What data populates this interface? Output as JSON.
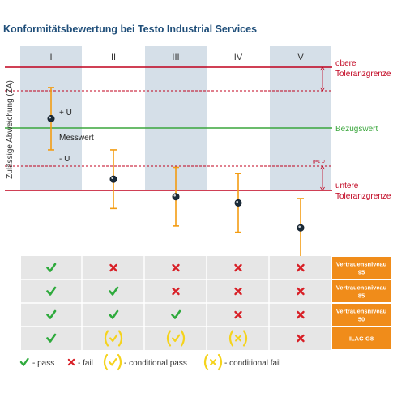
{
  "title": "Konformitätsbewertung bei Testo Industrial Services",
  "y_axis_label": "Zulässige Abweichung (ZA)",
  "columns": [
    "I",
    "II",
    "III",
    "IV",
    "V"
  ],
  "limits": {
    "upper": "obere Toleranzgrenze",
    "reference": "Bezugswert",
    "lower": "untere Toleranzgrenze",
    "guard_band": "g=1 U"
  },
  "annotations": {
    "plus_u": "+ U",
    "minus_u": "- U",
    "measured": "Messwert"
  },
  "measurements": [
    {
      "column": "I",
      "value": 0.15,
      "U": 0.5
    },
    {
      "column": "II",
      "value": -0.82,
      "U": 0.47
    },
    {
      "column": "III",
      "value": -1.1,
      "U": 0.47
    },
    {
      "column": "IV",
      "value": -1.2,
      "U": 0.47
    },
    {
      "column": "V",
      "value": -1.6,
      "U": 0.47
    }
  ],
  "legend_rows": [
    {
      "label_line1": "Vertrauensniveau",
      "label_line2": "95",
      "status": [
        "pass",
        "fail",
        "fail",
        "fail",
        "fail"
      ]
    },
    {
      "label_line1": "Vertrauensniveau",
      "label_line2": "85",
      "status": [
        "pass",
        "pass",
        "fail",
        "fail",
        "fail"
      ]
    },
    {
      "label_line1": "Vertrauensniveau",
      "label_line2": "50",
      "status": [
        "pass",
        "pass",
        "pass",
        "fail",
        "fail"
      ]
    },
    {
      "label_line1": "ILAC-G8",
      "label_line2": "",
      "status": [
        "pass",
        "conditional-pass",
        "conditional-pass",
        "conditional-fail",
        "fail"
      ]
    }
  ],
  "legend": {
    "pass": "- pass",
    "fail": "- fail",
    "conditional_pass": "- conditional pass",
    "conditional_fail": "- conditional fail"
  },
  "colors": {
    "title": "#1f4e79",
    "limit": "#c0001d",
    "reference": "#3aa63c",
    "error_bar": "#f39c12",
    "column_band": "#d5dfe8",
    "pass": "#2eaa3c",
    "fail": "#d81f26",
    "conditional": "#f5d31c",
    "label_box": "#f08c1a"
  }
}
